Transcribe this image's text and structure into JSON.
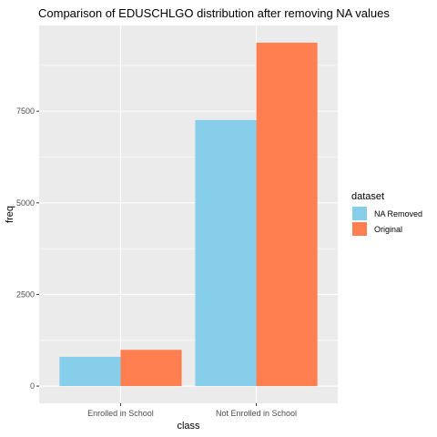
{
  "chart_data": {
    "type": "bar",
    "title": "Comparison of EDUSCHLGO distribution after removing NA values",
    "xlabel": "class",
    "ylabel": "freq",
    "categories": [
      "Enrolled in School",
      "Not Enrolled in School"
    ],
    "series": [
      {
        "name": "NA Removed",
        "values": [
          800,
          7260
        ],
        "color": "#87CEEB"
      },
      {
        "name": "Original",
        "values": [
          990,
          9370
        ],
        "color": "#FF7F50"
      }
    ],
    "yticks": [
      0,
      2500,
      5000,
      7500
    ],
    "ytick_labels": [
      "0",
      "2500",
      "5000",
      "7500"
    ],
    "ylim": [
      -470,
      9840
    ],
    "legend": {
      "title": "dataset",
      "position": "right"
    },
    "grid": true,
    "panel_background": "#EBEBEB",
    "grid_color": "#FFFFFF"
  }
}
